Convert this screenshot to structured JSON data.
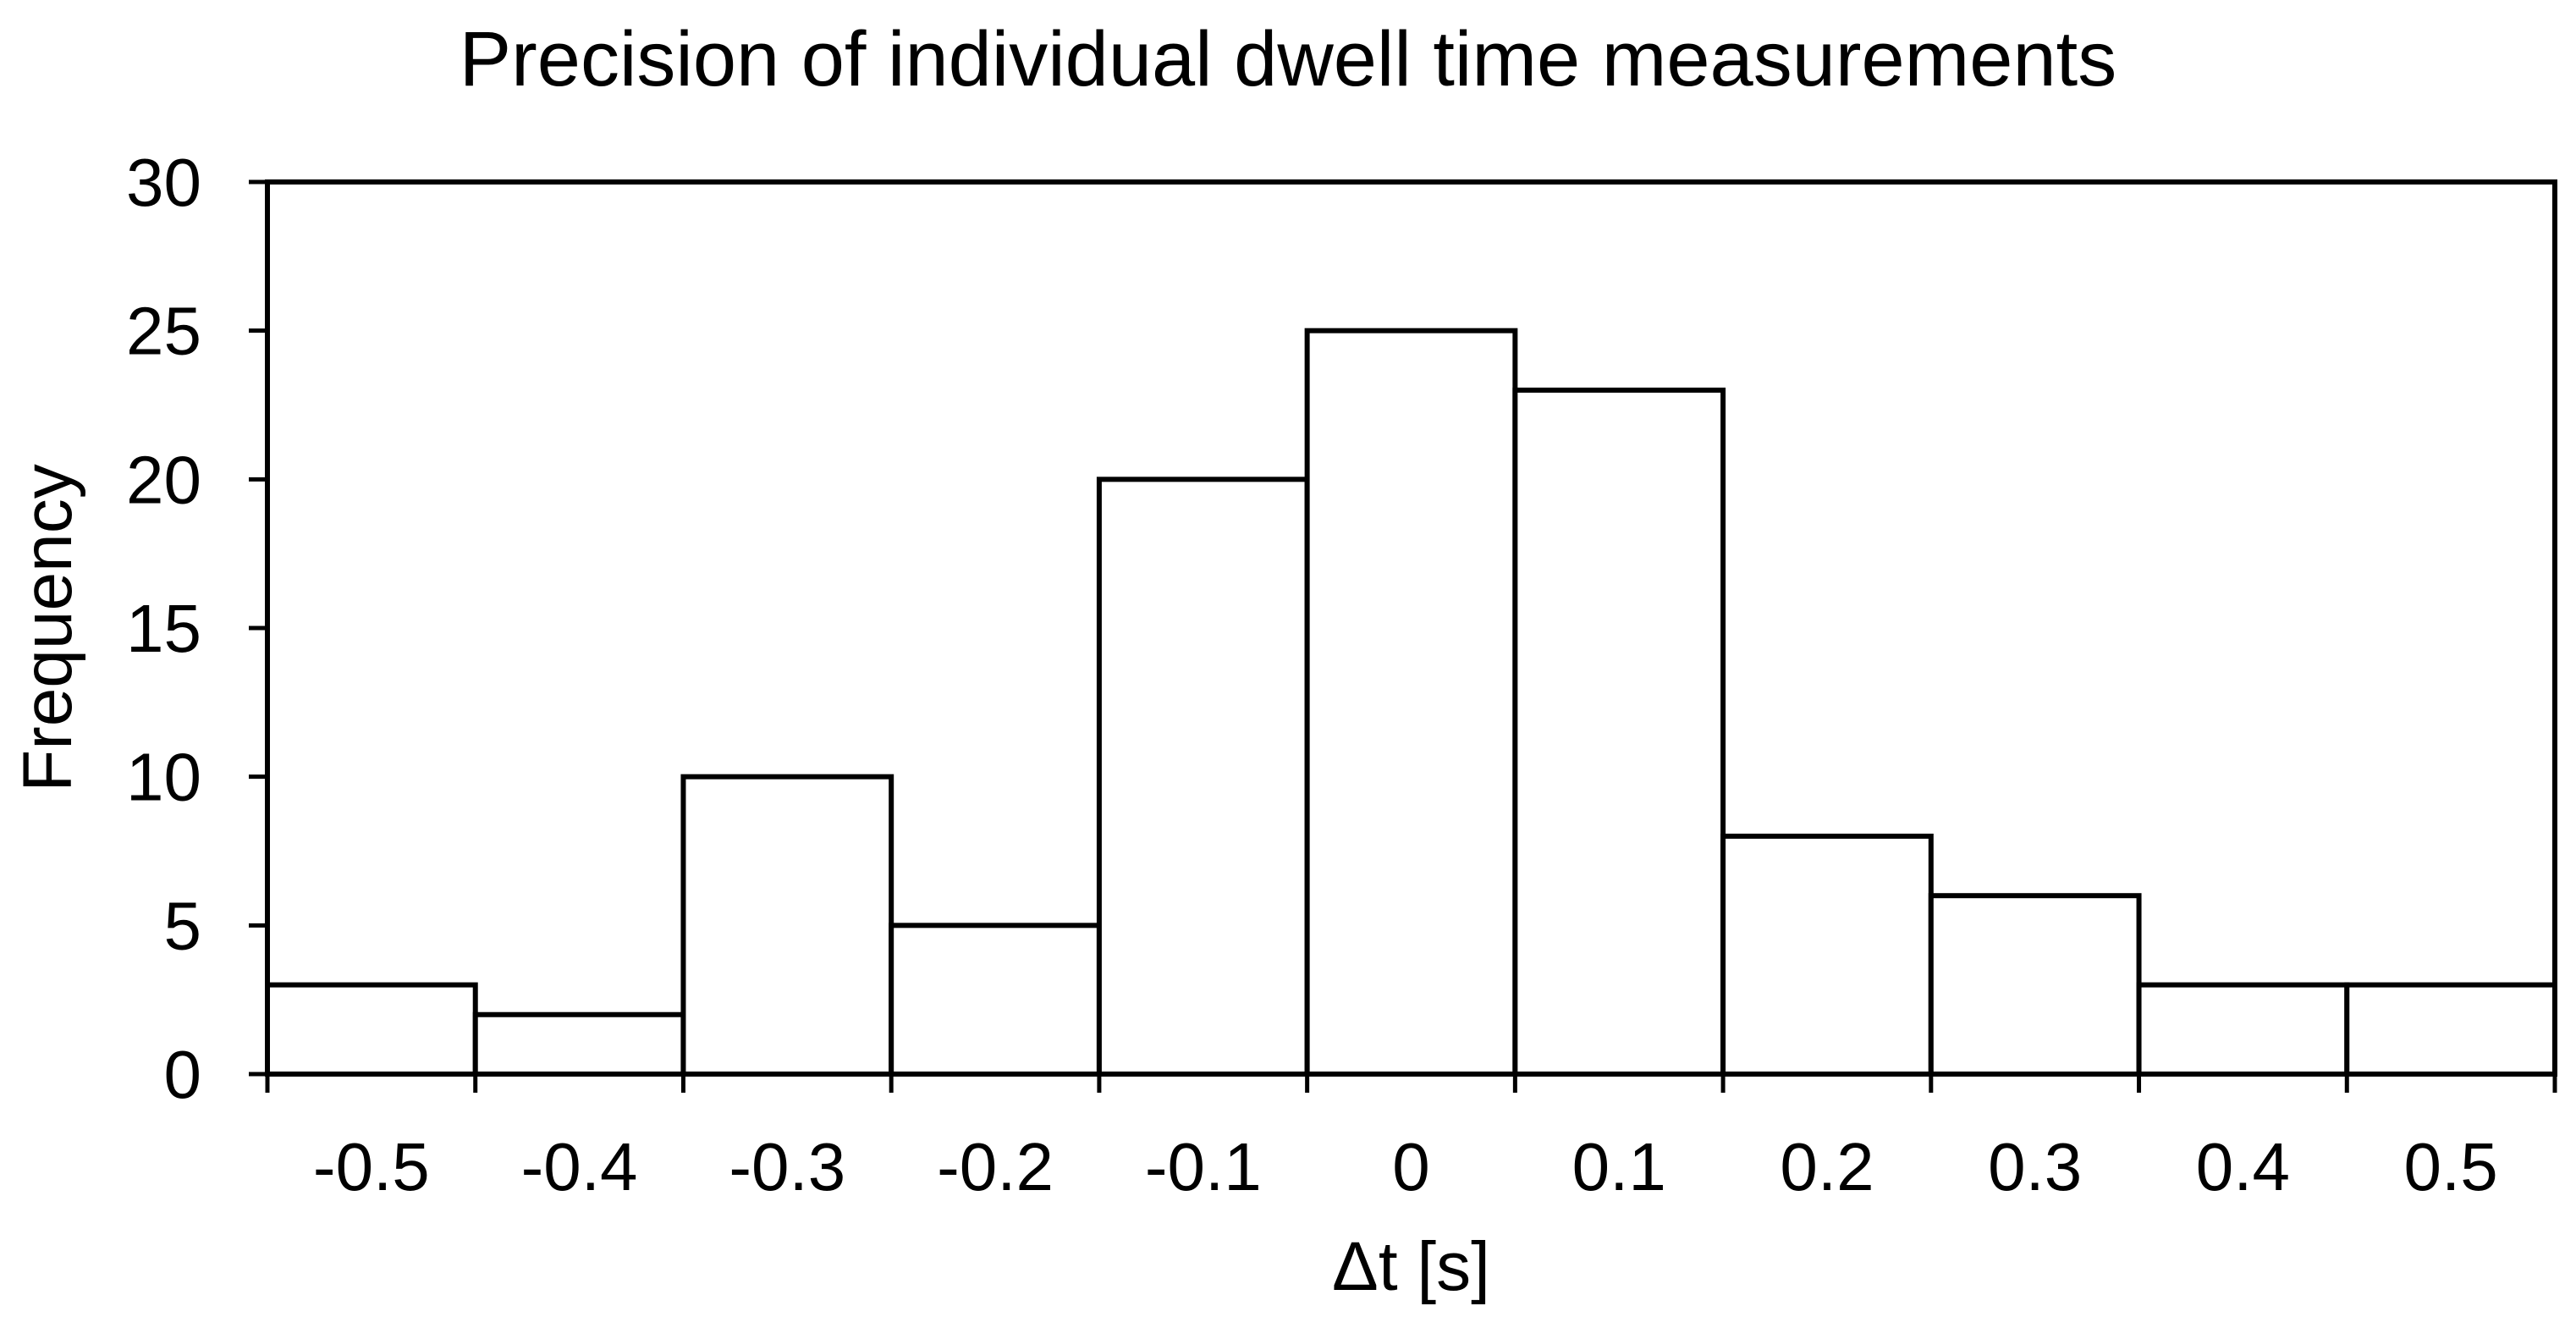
{
  "chart_data": {
    "type": "bar",
    "title": "Precision of individual dwell time measurements",
    "xlabel": "Δt [s]",
    "ylabel": "Frequency",
    "categories": [
      "-0.5",
      "-0.4",
      "-0.3",
      "-0.2",
      "-0.1",
      "0",
      "0.1",
      "0.2",
      "0.3",
      "0.4",
      "0.5"
    ],
    "values": [
      3,
      2,
      10,
      5,
      20,
      25,
      23,
      8,
      6,
      3,
      3
    ],
    "ylim": [
      0,
      30
    ],
    "yticks": [
      "0",
      "5",
      "10",
      "15",
      "20",
      "25",
      "30"
    ],
    "grid": false,
    "legend": "none",
    "bar_fill": "#ffffff",
    "bar_stroke": "#000000"
  }
}
